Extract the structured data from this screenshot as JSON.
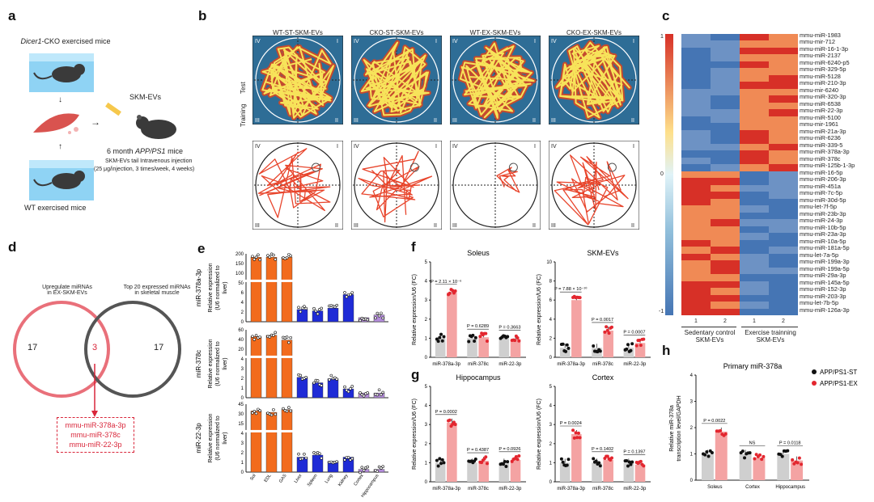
{
  "panel_a": {
    "label": "a",
    "exercised_cko_prefix": "Dicer1",
    "exercised_cko_suffix": "-CKO exercised mice",
    "wt_mice": "WT exercised mice",
    "skm_evs": "SKM-EVs",
    "target_mice_prefix": "6 month ",
    "target_mice_italic": "APP/PS1",
    "target_mice_suffix": " mice",
    "injection_line1": "SKM-EVs tail Intravenous injection",
    "injection_line2": "(25 μg/injection, 3 times/week, 4 weeks)"
  },
  "panel_b": {
    "label": "b",
    "columns": [
      "WT-ST-SKM-EVs",
      "CKO-ST-SKM-EVs",
      "WT-EX-SKM-EVs",
      "CKO-EX-SKM-EVs"
    ],
    "row_test": "Test",
    "row_training": "Training",
    "quadrants": [
      "IV",
      "I",
      "III",
      "II"
    ]
  },
  "panel_c": {
    "label": "c",
    "scale_top": "1",
    "scale_mid": "0",
    "scale_bottom": "-1",
    "col_nums": [
      "1",
      "2",
      "1",
      "2"
    ],
    "group1": "Sedentary control SKM-EVs",
    "group2": "Exercise trainning SKM-EVs",
    "genes": [
      "mmu-miR-1983",
      "mmu-mir-712",
      "mmu-miR-16-1-3p",
      "mmu-miR-2137",
      "mmu-miR-6240-p5",
      "mmu-miR-329-5p",
      "mmu-miR-5128",
      "mmu-miR-210-3p",
      "mmu-mir-6240",
      "mmu-miR-320-3p",
      "mmu-miR-6538",
      "mmu-miR-22-3p",
      "mmu-miR-5100",
      "mmu-mir-1961",
      "mmu-miR-21a-3p",
      "mmu-miR-6236",
      "mmu-miR-339-5",
      "mmu-miR-378a-3p",
      "mmu-miR-378c",
      "mmu-miR-125b-1-3p",
      "mmu-miR-16-5p",
      "mmu-miR-206-3p",
      "mmu-miR-451a",
      "mmu-miR-7c-5p",
      "mmu-miR-30d-5p",
      "mmu-let-7f-5p",
      "mmu-miR-23b-3p",
      "mmu-miR-24-3p",
      "mmu-miR-10b-5p",
      "mmu-miR-23a-3p",
      "mmu-miR-10a-5p",
      "mmu-miR-181a-5p",
      "mmu-let-7a-5p",
      "mmu-miR-199a-3p",
      "mmu-miR-199a-5p",
      "mmu-miR-29a-3p",
      "mmu-miR-145a-5p",
      "mmu-miR-152-3p",
      "mmu-miR-203-3p",
      "mmu-let-7b-5p",
      "mmu-miR-126a-3p"
    ]
  },
  "panel_d": {
    "label": "d",
    "left_title_1": "Upregulate miRNAs",
    "left_title_2": "in EX-SKM-EVs",
    "right_title_1": "Top 20 expressed miRNAs",
    "right_title_2": "in skeletal muscle",
    "left_count": "17",
    "overlap_count": "3",
    "right_count": "17",
    "overlap_list": [
      "mmu-miR-378a-3p",
      "mmu-miR-378c",
      "mmu-miR-22-3p"
    ]
  },
  "panel_e": {
    "label": "e",
    "ylabel_1": "Relative expression",
    "ylabel_2": "(U6 normalized to",
    "ylabel_3": "liver)",
    "tissues": [
      "Sol",
      "EDL",
      "GAS",
      "Liver",
      "Spleen",
      "Lung",
      "Kidney",
      "Cortex",
      "Hippocampus"
    ],
    "rows": [
      {
        "mirna": "miR-378a-3p",
        "ticks": [
          "200",
          "150",
          "100",
          "50",
          "6",
          "4",
          "2",
          "0"
        ]
      },
      {
        "mirna": "miR-378c",
        "ticks": [
          "60",
          "40",
          "20",
          "4",
          "3",
          "2",
          "1",
          "0"
        ]
      },
      {
        "mirna": "miR-22-3p",
        "ticks": [
          "45",
          "30",
          "15",
          "4",
          "3",
          "2",
          "1",
          "0"
        ]
      }
    ]
  },
  "panel_f": {
    "label": "f",
    "soleus_title": "Soleus",
    "skm_title": "SKM-EVs",
    "ylabel": "Relative expression/U6 (FC)",
    "xcats": [
      "miR-378a-3p",
      "miR-378c",
      "miR-22-3p"
    ],
    "soleus_p": [
      "P = 2.11 × 10⁻⁶",
      "P = 0.6289",
      "P = 0.3663"
    ],
    "skm_p": [
      "P = 7.88 × 10⁻¹⁰",
      "P = 0.0017",
      "P = 0.0007"
    ]
  },
  "panel_g": {
    "label": "g",
    "hippo_title": "Hippocampus",
    "cortex_title": "Cortex",
    "ylabel": "Relative expression/U6 (FC)",
    "xcats": [
      "miR-378a-3p",
      "miR-378c",
      "miR-22-3p"
    ],
    "hippo_p": [
      "P = 0.0002",
      "P = 0.4387",
      "P = 0.0926"
    ],
    "cortex_p": [
      "P = 0.0024",
      "P = 0.1402",
      "P = 0.1397"
    ]
  },
  "panel_h": {
    "label": "h",
    "title": "Primary miR-378a",
    "ylabel_1": "Relative miR-378a",
    "ylabel_2": "transcription level/GAPDH",
    "xcats": [
      "Soleus",
      "Cortex",
      "Hippocampus"
    ],
    "p_values": [
      "P = 0.0022",
      "NS",
      "P = 0.0118"
    ],
    "legend_st": "APP/PS1-ST",
    "legend_ex": "APP/PS1-EX"
  },
  "colors": {
    "orange": "#f26b1d",
    "blue": "#1f2bd6",
    "purple": "#b48ddb",
    "pink": "#f4a3a3",
    "red": "#e3262f",
    "grey": "#cfcfcf"
  },
  "chart_data": [
    {
      "type": "bar",
      "title": "Soleus",
      "ylabel": "Relative expression/U6 (FC)",
      "ylim": [
        0,
        5
      ],
      "categories": [
        "miR-378a-3p",
        "miR-378c",
        "miR-22-3p"
      ],
      "series": [
        {
          "name": "APP/PS1-ST",
          "values": [
            1.0,
            1.0,
            1.0
          ]
        },
        {
          "name": "APP/PS1-EX",
          "values": [
            3.4,
            1.05,
            0.95
          ]
        }
      ]
    },
    {
      "type": "bar",
      "title": "SKM-EVs",
      "ylabel": "Relative expression/U6 (FC)",
      "ylim": [
        0,
        10
      ],
      "categories": [
        "miR-378a-3p",
        "miR-378c",
        "miR-22-3p"
      ],
      "series": [
        {
          "name": "APP/PS1-ST",
          "values": [
            1.0,
            1.0,
            1.0
          ]
        },
        {
          "name": "APP/PS1-EX",
          "values": [
            6.0,
            2.8,
            1.5
          ]
        }
      ]
    },
    {
      "type": "bar",
      "title": "Hippocampus",
      "ylabel": "Relative expression/U6 (FC)",
      "ylim": [
        0,
        5
      ],
      "categories": [
        "miR-378a-3p",
        "miR-378c",
        "miR-22-3p"
      ],
      "series": [
        {
          "name": "APP/PS1-ST",
          "values": [
            1.0,
            1.0,
            1.0
          ]
        },
        {
          "name": "APP/PS1-EX",
          "values": [
            3.1,
            1.1,
            1.15
          ]
        }
      ]
    },
    {
      "type": "bar",
      "title": "Cortex",
      "ylabel": "Relative expression/U6 (FC)",
      "ylim": [
        0,
        5
      ],
      "categories": [
        "miR-378a-3p",
        "miR-378c",
        "miR-22-3p"
      ],
      "series": [
        {
          "name": "APP/PS1-ST",
          "values": [
            1.0,
            1.0,
            1.0
          ]
        },
        {
          "name": "APP/PS1-EX",
          "values": [
            2.5,
            1.15,
            0.9
          ]
        }
      ]
    },
    {
      "type": "bar",
      "title": "Primary miR-378a",
      "ylabel": "Relative miR-378a transcription level/GAPDH",
      "ylim": [
        0,
        4
      ],
      "categories": [
        "Soleus",
        "Cortex",
        "Hippocampus"
      ],
      "series": [
        {
          "name": "APP/PS1-ST",
          "values": [
            1.0,
            1.0,
            1.0
          ]
        },
        {
          "name": "APP/PS1-EX",
          "values": [
            1.85,
            0.85,
            0.75
          ]
        }
      ]
    }
  ]
}
